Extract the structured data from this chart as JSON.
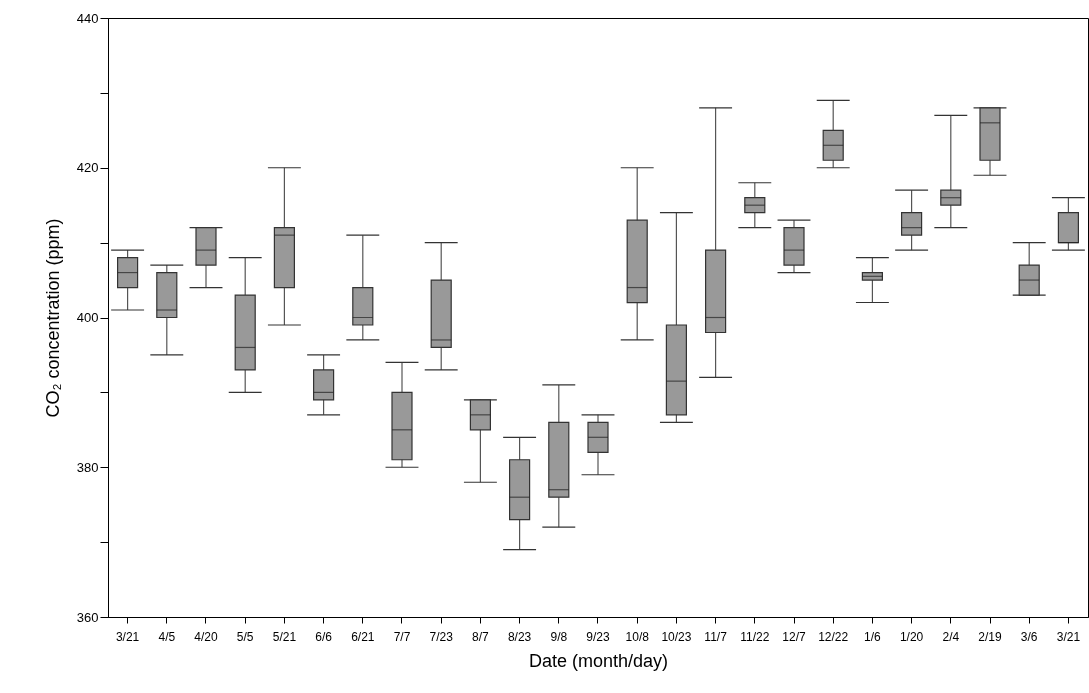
{
  "chart_data": {
    "type": "box",
    "xlabel": "Date (month/day)",
    "ylabel": "CO₂ concentration (ppm)",
    "categories": [
      "3/21",
      "4/5",
      "4/20",
      "5/5",
      "5/21",
      "6/6",
      "6/21",
      "7/7",
      "7/23",
      "8/7",
      "8/23",
      "9/8",
      "9/23",
      "10/8",
      "10/23",
      "11/7",
      "11/22",
      "12/7",
      "12/22",
      "1/6",
      "1/20",
      "2/4",
      "2/19",
      "3/6",
      "3/21"
    ],
    "boxes": [
      {
        "low": 401,
        "q1": 404,
        "median": 406,
        "q3": 408,
        "high": 409
      },
      {
        "low": 395,
        "q1": 400,
        "median": 401,
        "q3": 406,
        "high": 407
      },
      {
        "low": 404,
        "q1": 407,
        "median": 409,
        "q3": 412,
        "high": 412
      },
      {
        "low": 390,
        "q1": 393,
        "median": 396,
        "q3": 403,
        "high": 408
      },
      {
        "low": 399,
        "q1": 404,
        "median": 411,
        "q3": 412,
        "high": 420
      },
      {
        "low": 387,
        "q1": 389,
        "median": 390,
        "q3": 393,
        "high": 395
      },
      {
        "low": 397,
        "q1": 399,
        "median": 400,
        "q3": 404,
        "high": 411
      },
      {
        "low": 380,
        "q1": 381,
        "median": 385,
        "q3": 390,
        "high": 394
      },
      {
        "low": 393,
        "q1": 396,
        "median": 397,
        "q3": 405,
        "high": 410
      },
      {
        "low": 378,
        "q1": 385,
        "median": 387,
        "q3": 389,
        "high": 389
      },
      {
        "low": 369,
        "q1": 373,
        "median": 376,
        "q3": 381,
        "high": 384
      },
      {
        "low": 372,
        "q1": 376,
        "median": 377,
        "q3": 386,
        "high": 391
      },
      {
        "low": 379,
        "q1": 382,
        "median": 384,
        "q3": 386,
        "high": 387
      },
      {
        "low": 397,
        "q1": 402,
        "median": 404,
        "q3": 413,
        "high": 420
      },
      {
        "low": 386,
        "q1": 387,
        "median": 391.5,
        "q3": 399,
        "high": 414
      },
      {
        "low": 392,
        "q1": 398,
        "median": 400,
        "q3": 409,
        "high": 428
      },
      {
        "low": 412,
        "q1": 414,
        "median": 415,
        "q3": 416,
        "high": 418
      },
      {
        "low": 406,
        "q1": 407,
        "median": 409,
        "q3": 412,
        "high": 413
      },
      {
        "low": 420,
        "q1": 421,
        "median": 423,
        "q3": 425,
        "high": 429
      },
      {
        "low": 402,
        "q1": 405,
        "median": 405.5,
        "q3": 406,
        "high": 408
      },
      {
        "low": 409,
        "q1": 411,
        "median": 412,
        "q3": 414,
        "high": 417
      },
      {
        "low": 412,
        "q1": 415,
        "median": 416,
        "q3": 417,
        "high": 427
      },
      {
        "low": 419,
        "q1": 421,
        "median": 426,
        "q3": 428,
        "high": 428
      },
      {
        "low": 403,
        "q1": 403,
        "median": 405,
        "q3": 407,
        "high": 410
      },
      {
        "low": 409,
        "q1": 410,
        "median": 410,
        "q3": 414,
        "high": 416
      }
    ],
    "color": "#999999",
    "ylim": [
      360,
      440
    ],
    "yticks": [
      360,
      {
        "value": 370,
        "label": null
      },
      380,
      {
        "value": 390,
        "label": null
      },
      400,
      {
        "value": 410,
        "label": null
      },
      420,
      {
        "value": 430,
        "label": null
      },
      440
    ],
    "grid": false
  }
}
